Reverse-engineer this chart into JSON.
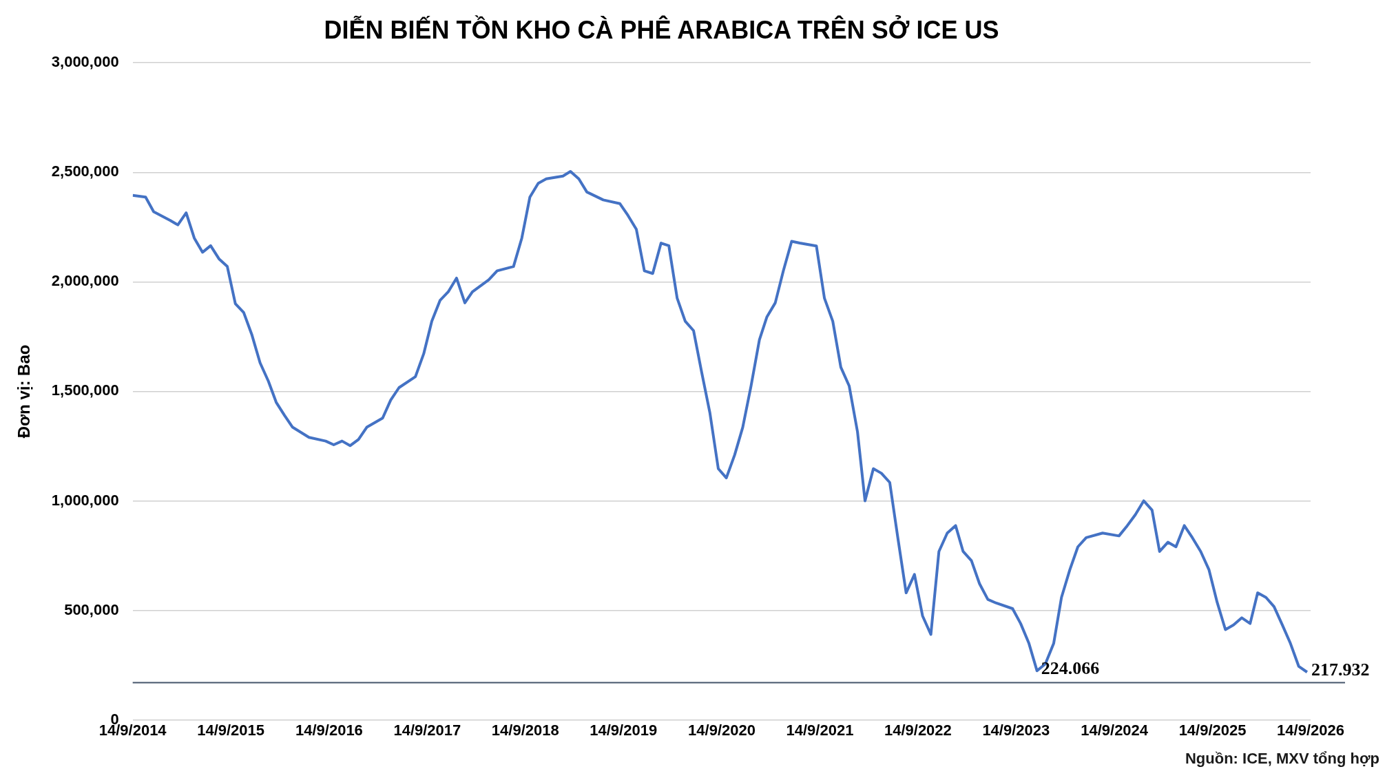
{
  "chart_data": {
    "type": "line",
    "title": "DIỄN BIẾN TỒN KHO CÀ PHÊ ARABICA TRÊN SỞ ICE US",
    "ylabel": "Đơn vị: Bao",
    "x": [
      "2014-09-14",
      "2014-11",
      "2014-12",
      "2015-02",
      "2015-03",
      "2015-04",
      "2015-05",
      "2015-06",
      "2015-07",
      "2015-08",
      "2015-09",
      "2015-10",
      "2015-11",
      "2015-12",
      "2016-01",
      "2016-02",
      "2016-03",
      "2016-04",
      "2016-05",
      "2016-07",
      "2016-09",
      "2016-10",
      "2016-11",
      "2016-12",
      "2017-01",
      "2017-02",
      "2017-04",
      "2017-05",
      "2017-06",
      "2017-08",
      "2017-09",
      "2017-10",
      "2017-11",
      "2017-12",
      "2018-01",
      "2018-02",
      "2018-03",
      "2018-05",
      "2018-06",
      "2018-08",
      "2018-09",
      "2018-10",
      "2018-11",
      "2018-12",
      "2019-02",
      "2019-03",
      "2019-04",
      "2019-05",
      "2019-07",
      "2019-09",
      "2019-10",
      "2019-11",
      "2019-12",
      "2020-01",
      "2020-02",
      "2020-03",
      "2020-04",
      "2020-05",
      "2020-06",
      "2020-07",
      "2020-08",
      "2020-09",
      "2020-10",
      "2020-11",
      "2020-12",
      "2021-01",
      "2021-02",
      "2021-03",
      "2021-04",
      "2021-05",
      "2021-06",
      "2021-07",
      "2021-09",
      "2021-10",
      "2021-11",
      "2021-12",
      "2022-01",
      "2022-02",
      "2022-03",
      "2022-04",
      "2022-05",
      "2022-06",
      "2022-07",
      "2022-08",
      "2022-09",
      "2022-10",
      "2022-11",
      "2022-12",
      "2023-01",
      "2023-02",
      "2023-03",
      "2023-04",
      "2023-05",
      "2023-06",
      "2023-07",
      "2023-09",
      "2023-10",
      "2023-11",
      "2023-12",
      "2024-01",
      "2024-02",
      "2024-03",
      "2024-04",
      "2024-05",
      "2024-06",
      "2024-08",
      "2024-10",
      "2024-11",
      "2024-12",
      "2025-01",
      "2025-02",
      "2025-03",
      "2025-04",
      "2025-05",
      "2025-06",
      "2025-07",
      "2025-08",
      "2025-09",
      "2025-10",
      "2025-11",
      "2025-12",
      "2026-01",
      "2026-02",
      "2026-03",
      "2026-04",
      "2026-05",
      "2026-06",
      "2026-07",
      "2026-08",
      "2026-09"
    ],
    "series": [
      {
        "color": "#4472c4",
        "values": [
          2395000,
          2387000,
          2320000,
          2280000,
          2260000,
          2315000,
          2200000,
          2135000,
          2165000,
          2105000,
          2070000,
          1900000,
          1860000,
          1760000,
          1630000,
          1546000,
          1450000,
          1390000,
          1336000,
          1290000,
          1273000,
          1256000,
          1273000,
          1252000,
          1280000,
          1336000,
          1378000,
          1460000,
          1517000,
          1567000,
          1672000,
          1820000,
          1916000,
          1954000,
          2017000,
          1904000,
          1954000,
          2009000,
          2050000,
          2070000,
          2200000,
          2387000,
          2450000,
          2470000,
          2483000,
          2504000,
          2470000,
          2410000,
          2374000,
          2357000,
          2303000,
          2240000,
          2050000,
          2038000,
          2177000,
          2165000,
          1925000,
          1820000,
          1777000,
          1588000,
          1400000,
          1147000,
          1105000,
          1210000,
          1336000,
          1525000,
          1735000,
          1840000,
          1904000,
          2050000,
          2185000,
          2177000,
          2164000,
          1925000,
          1820000,
          1610000,
          1525000,
          1315000,
          1000000,
          1147000,
          1126000,
          1084000,
          832000,
          580000,
          664000,
          475000,
          390000,
          769000,
          853000,
          887000,
          769000,
          727000,
          622000,
          550000,
          534000,
          508000,
          440000,
          349000,
          224066,
          256000,
          349000,
          559000,
          685000,
          790000,
          832000,
          853000,
          840000,
          887000,
          937000,
          1000000,
          958000,
          769000,
          811000,
          790000,
          887000,
          832000,
          769000,
          685000,
          538000,
          412000,
          433000,
          466000,
          440000,
          580000,
          559000,
          517000,
          433000,
          349000,
          244000,
          217932
        ]
      }
    ],
    "xlim": [
      "2014-09-14",
      "2026-09-14"
    ],
    "xticks": [
      {
        "value": "2014-09-14",
        "label": "14/9/2014"
      },
      {
        "value": "2015-09-14",
        "label": "14/9/2015"
      },
      {
        "value": "2016-09-14",
        "label": "14/9/2016"
      },
      {
        "value": "2017-09-14",
        "label": "14/9/2017"
      },
      {
        "value": "2018-09-14",
        "label": "14/9/2018"
      },
      {
        "value": "2019-09-14",
        "label": "14/9/2019"
      },
      {
        "value": "2020-09-14",
        "label": "14/9/2020"
      },
      {
        "value": "2021-09-14",
        "label": "14/9/2021"
      },
      {
        "value": "2022-09-14",
        "label": "14/9/2022"
      },
      {
        "value": "2023-09-14",
        "label": "14/9/2023"
      },
      {
        "value": "2024-09-14",
        "label": "14/9/2024"
      },
      {
        "value": "2025-09-14",
        "label": "14/9/2025"
      },
      {
        "value": "2026-09-14",
        "label": "14/9/2026"
      }
    ],
    "ylim": [
      0,
      3000000
    ],
    "yticks": [
      0,
      {
        "value": 500000,
        "label": "500,000"
      },
      {
        "value": 1000000,
        "label": "1,000,000"
      },
      {
        "value": 1500000,
        "label": "1,500,000"
      },
      {
        "value": 2000000,
        "label": "2,000,000"
      },
      {
        "value": 2500000,
        "label": "2,500,000"
      },
      {
        "value": 3000000,
        "label": "3,000,000"
      }
    ],
    "grid": "y",
    "legend": false,
    "marker": "none",
    "line_style": "solid",
    "ref_lines": [
      {
        "axis": "y",
        "value": 170000,
        "color": "#44546a"
      }
    ],
    "annotations": [
      {
        "text": "224.066",
        "x": "2023-12",
        "y": 224066
      },
      {
        "text": "217.932",
        "x": "2026-09",
        "y": 217932
      },
      "Nguồn: ICE, MXV tổng hợp"
    ]
  }
}
